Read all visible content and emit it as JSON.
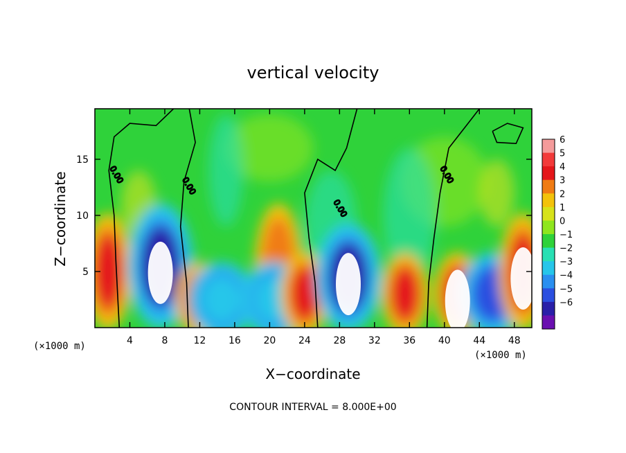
{
  "chart_data": {
    "type": "heatmap",
    "title": "vertical velocity",
    "xlabel": "X−coordinate",
    "ylabel": "Z−coordinate",
    "x_unit": "(×1000 m)",
    "y_unit": "(×1000 m)",
    "xlim": [
      0,
      50
    ],
    "ylim": [
      0,
      19.5
    ],
    "x_ticks": [
      4,
      8,
      12,
      16,
      20,
      24,
      28,
      32,
      36,
      40,
      44,
      48
    ],
    "x_tick_labels": [
      "4",
      "8",
      "12",
      "16",
      "20",
      "24",
      "28",
      "32",
      "36",
      "40",
      "44",
      "48"
    ],
    "y_ticks": [
      5,
      10,
      15
    ],
    "y_tick_labels": [
      "5",
      "10",
      "15"
    ],
    "colorbar": {
      "levels": [
        6,
        5,
        4,
        3,
        2,
        1,
        0,
        -1,
        -2,
        -3,
        -4,
        -5,
        -6
      ],
      "labels": [
        "6",
        "5",
        "4",
        "3",
        "2",
        "1",
        "0",
        "−1",
        "−2",
        "−3",
        "−4",
        "−5",
        "−6"
      ],
      "colors": [
        "#f49b9b",
        "#f23a3a",
        "#e4161a",
        "#f07b13",
        "#f3c20b",
        "#d7e21a",
        "#8fe61e",
        "#2fd23a",
        "#29e0b4",
        "#26c6ea",
        "#2a8ff0",
        "#2b4fe0",
        "#2a1fa8",
        "#6a0fb0"
      ]
    },
    "contour_interval_text": "CONTOUR INTERVAL = 8.000E+00",
    "contour_labels": [
      "0.00",
      "0.00",
      "0.00",
      "0.00"
    ],
    "features": [
      {
        "kind": "updraft",
        "x": 1.5,
        "z": 5,
        "strength": 5
      },
      {
        "kind": "downdraft",
        "x": 7.5,
        "z": 5.5,
        "strength": -6
      },
      {
        "kind": "updraft",
        "x": 12,
        "z": 2.5,
        "strength": 5
      },
      {
        "kind": "downdraft",
        "x": 14.5,
        "z": 2.5,
        "strength": -2
      },
      {
        "kind": "updraft",
        "x": 21,
        "z": 5.5,
        "strength": 3
      },
      {
        "kind": "downdraft",
        "x": 20.5,
        "z": 2.5,
        "strength": -2
      },
      {
        "kind": "updraft",
        "x": 24,
        "z": 3,
        "strength": 5
      },
      {
        "kind": "downdraft",
        "x": 29,
        "z": 4.5,
        "strength": -6
      },
      {
        "kind": "updraft",
        "x": 35.5,
        "z": 3,
        "strength": 5
      },
      {
        "kind": "updraft",
        "x": 41.5,
        "z": 3,
        "strength": 6
      },
      {
        "kind": "downdraft",
        "x": 45.5,
        "z": 3,
        "strength": -5
      },
      {
        "kind": "updraft",
        "x": 49,
        "z": 5,
        "strength": 6
      }
    ]
  }
}
